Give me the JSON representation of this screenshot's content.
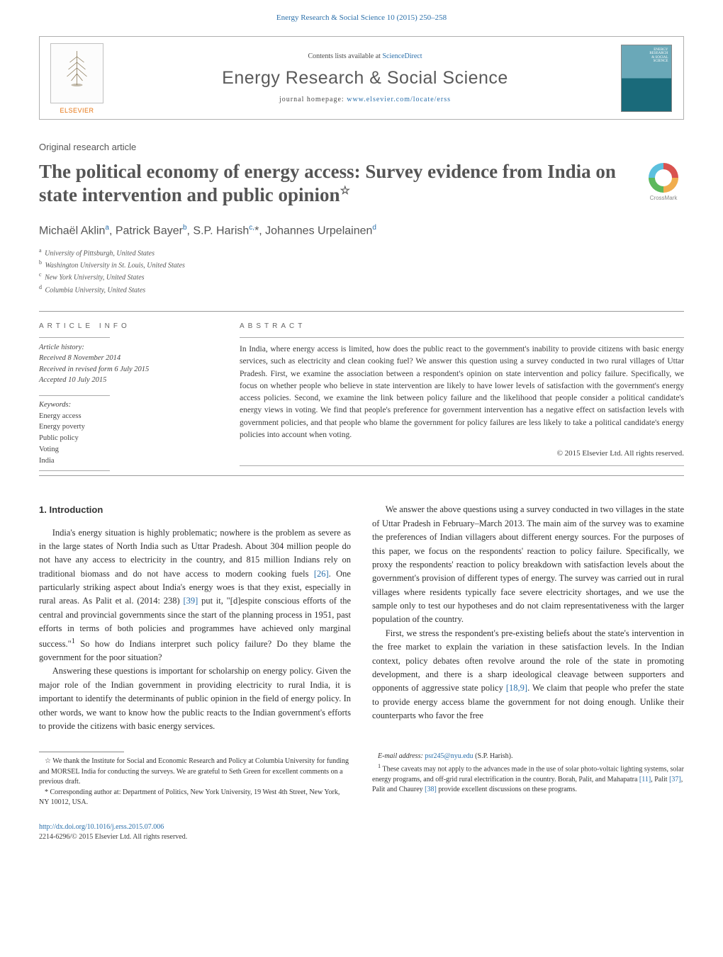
{
  "header": {
    "running_head": "Energy Research & Social Science 10 (2015) 250–258",
    "running_head_color": "#2a6faa",
    "contents_label": "Contents lists available at ",
    "contents_link": "ScienceDirect",
    "journal_title": "Energy Research & Social Science",
    "homepage_label": "journal homepage: ",
    "homepage_url": "www.elsevier.com/locate/erss",
    "publisher_name": "ELSEVIER",
    "cover_text_top": "ENERGY\nRESEARCH\n& SOCIAL\nSCIENCE"
  },
  "article": {
    "type_label": "Original research article",
    "title": "The political economy of energy access: Survey evidence from India on state intervention and public opinion",
    "title_star": "☆",
    "crossmark_label": "CrossMark",
    "authors_html": "Michaël Aklin<sup>a</sup>, Patrick Bayer<sup>b</sup>, S.P. Harish<sup>c,</sup>*, Johannes Urpelainen<sup>d</sup>",
    "affiliations": [
      {
        "sup": "a",
        "text": "University of Pittsburgh, United States"
      },
      {
        "sup": "b",
        "text": "Washington University in St. Louis, United States"
      },
      {
        "sup": "c",
        "text": "New York University, United States"
      },
      {
        "sup": "d",
        "text": "Columbia University, United States"
      }
    ]
  },
  "info": {
    "heading": "ARTICLE INFO",
    "history_lbl": "Article history:",
    "received": "Received 8 November 2014",
    "revised": "Received in revised form 6 July 2015",
    "accepted": "Accepted 10 July 2015",
    "keywords_lbl": "Keywords:",
    "keywords": [
      "Energy access",
      "Energy poverty",
      "Public policy",
      "Voting",
      "India"
    ]
  },
  "abstract": {
    "heading": "ABSTRACT",
    "body": "In India, where energy access is limited, how does the public react to the government's inability to provide citizens with basic energy services, such as electricity and clean cooking fuel? We answer this question using a survey conducted in two rural villages of Uttar Pradesh. First, we examine the association between a respondent's opinion on state intervention and policy failure. Specifically, we focus on whether people who believe in state intervention are likely to have lower levels of satisfaction with the government's energy access policies. Second, we examine the link between policy failure and the likelihood that people consider a political candidate's energy views in voting. We find that people's preference for government intervention has a negative effect on satisfaction levels with government policies, and that people who blame the government for policy failures are less likely to take a political candidate's energy policies into account when voting.",
    "copyright": "© 2015 Elsevier Ltd. All rights reserved."
  },
  "body": {
    "section_num": "1.",
    "section_title": "Introduction",
    "paragraphs": [
      "India's energy situation is highly problematic; nowhere is the problem as severe as in the large states of North India such as Uttar Pradesh. About 304 million people do not have any access to electricity in the country, and 815 million Indians rely on traditional biomass and do not have access to modern cooking fuels <span class=\"ref\">[26]</span>. One particularly striking aspect about India's energy woes is that they exist, especially in rural areas. As Palit et al. (2014: 238) <span class=\"ref\">[39]</span> put it, \"[d]espite conscious efforts of the central and provincial governments since the start of the planning process in 1951, past efforts in terms of both policies and programmes have achieved only marginal success.\"<sup>1</sup> So how do Indians interpret such policy failure? Do they blame the government for the poor situation?",
      "Answering these questions is important for scholarship on energy policy. Given the major role of the Indian government in providing electricity to rural India, it is important to identify the determinants of public opinion in the field of energy policy. In other words, we want to know how the public reacts to the Indian government's efforts to provide the citizens with basic energy services.",
      "We answer the above questions using a survey conducted in two villages in the state of Uttar Pradesh in February–March 2013. The main aim of the survey was to examine the preferences of Indian villagers about different energy sources. For the purposes of this paper, we focus on the respondents' reaction to policy failure. Specifically, we proxy the respondents' reaction to policy breakdown with satisfaction levels about the government's provision of different types of energy. The survey was carried out in rural villages where residents typically face severe electricity shortages, and we use the sample only to test our hypotheses and do not claim representativeness with the larger population of the country.",
      "First, we stress the respondent's pre-existing beliefs about the state's intervention in the free market to explain the variation in these satisfaction levels. In the Indian context, policy debates often revolve around the role of the state in promoting development, and there is a sharp ideological cleavage between supporters and opponents of aggressive state policy <span class=\"ref\">[18,9]</span>. We claim that people who prefer the state to provide energy access blame the government for not doing enough. Unlike their counterparts who favor the free"
    ]
  },
  "footnotes": {
    "star": "☆ We thank the Institute for Social and Economic Research and Policy at Columbia University for funding and MORSEL India for conducting the surveys. We are grateful to Seth Green for excellent comments on a previous draft.",
    "corr": "* Corresponding author at: Department of Politics, New York University, 19 West 4th Street, New York, NY 10012, USA.",
    "email_lbl": "E-mail address: ",
    "email": "psr245@nyu.edu",
    "email_suffix": " (S.P. Harish).",
    "fn1": "<sup>1</sup> These caveats may not apply to the advances made in the use of solar photo-voltaic lighting systems, solar energy programs, and off-grid rural electrification in the country. Borah, Palit, and Mahapatra <span class=\"ref\">[11]</span>, Palit <span class=\"ref\">[37]</span>, Palit and Chaurey <span class=\"ref\">[38]</span> provide excellent discussions on these programs."
  },
  "bottom": {
    "doi": "http://dx.doi.org/10.1016/j.erss.2015.07.006",
    "issn_line": "2214-6296/© 2015 Elsevier Ltd. All rights reserved."
  },
  "colors": {
    "link": "#2a6faa",
    "text": "#3a3a3a",
    "accent": "#e6730f"
  }
}
